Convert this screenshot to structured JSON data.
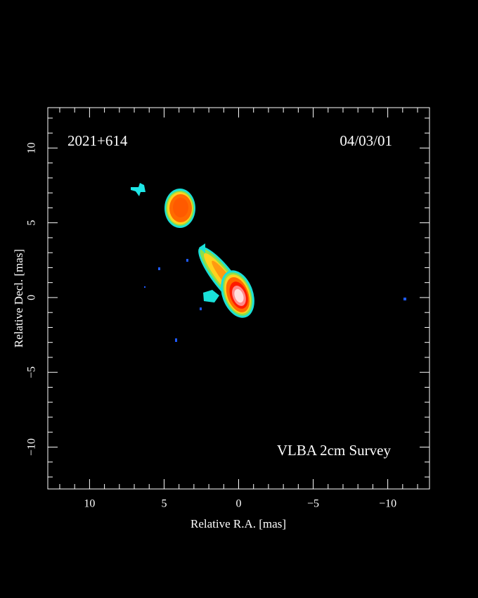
{
  "chart_data": {
    "type": "image",
    "annotations": [
      "2021+614",
      "04/03/01",
      "VLBA 2cm Survey"
    ],
    "xlabel": "Relative R.A. [mas]",
    "ylabel": "Relative Decl. [mas]",
    "xlim": [
      12.8,
      -12.8
    ],
    "ylim": [
      -12.8,
      12.7
    ],
    "xticks": [
      10,
      5,
      0,
      {
        "value": -5,
        "label": "−5"
      },
      {
        "value": -10,
        "label": "−10"
      }
    ],
    "yticks": [
      {
        "value": -10,
        "label": "−10"
      },
      {
        "value": -5,
        "label": "−5"
      },
      0,
      5,
      10
    ],
    "minor_per_major": 5,
    "color": "#ffffff"
  }
}
